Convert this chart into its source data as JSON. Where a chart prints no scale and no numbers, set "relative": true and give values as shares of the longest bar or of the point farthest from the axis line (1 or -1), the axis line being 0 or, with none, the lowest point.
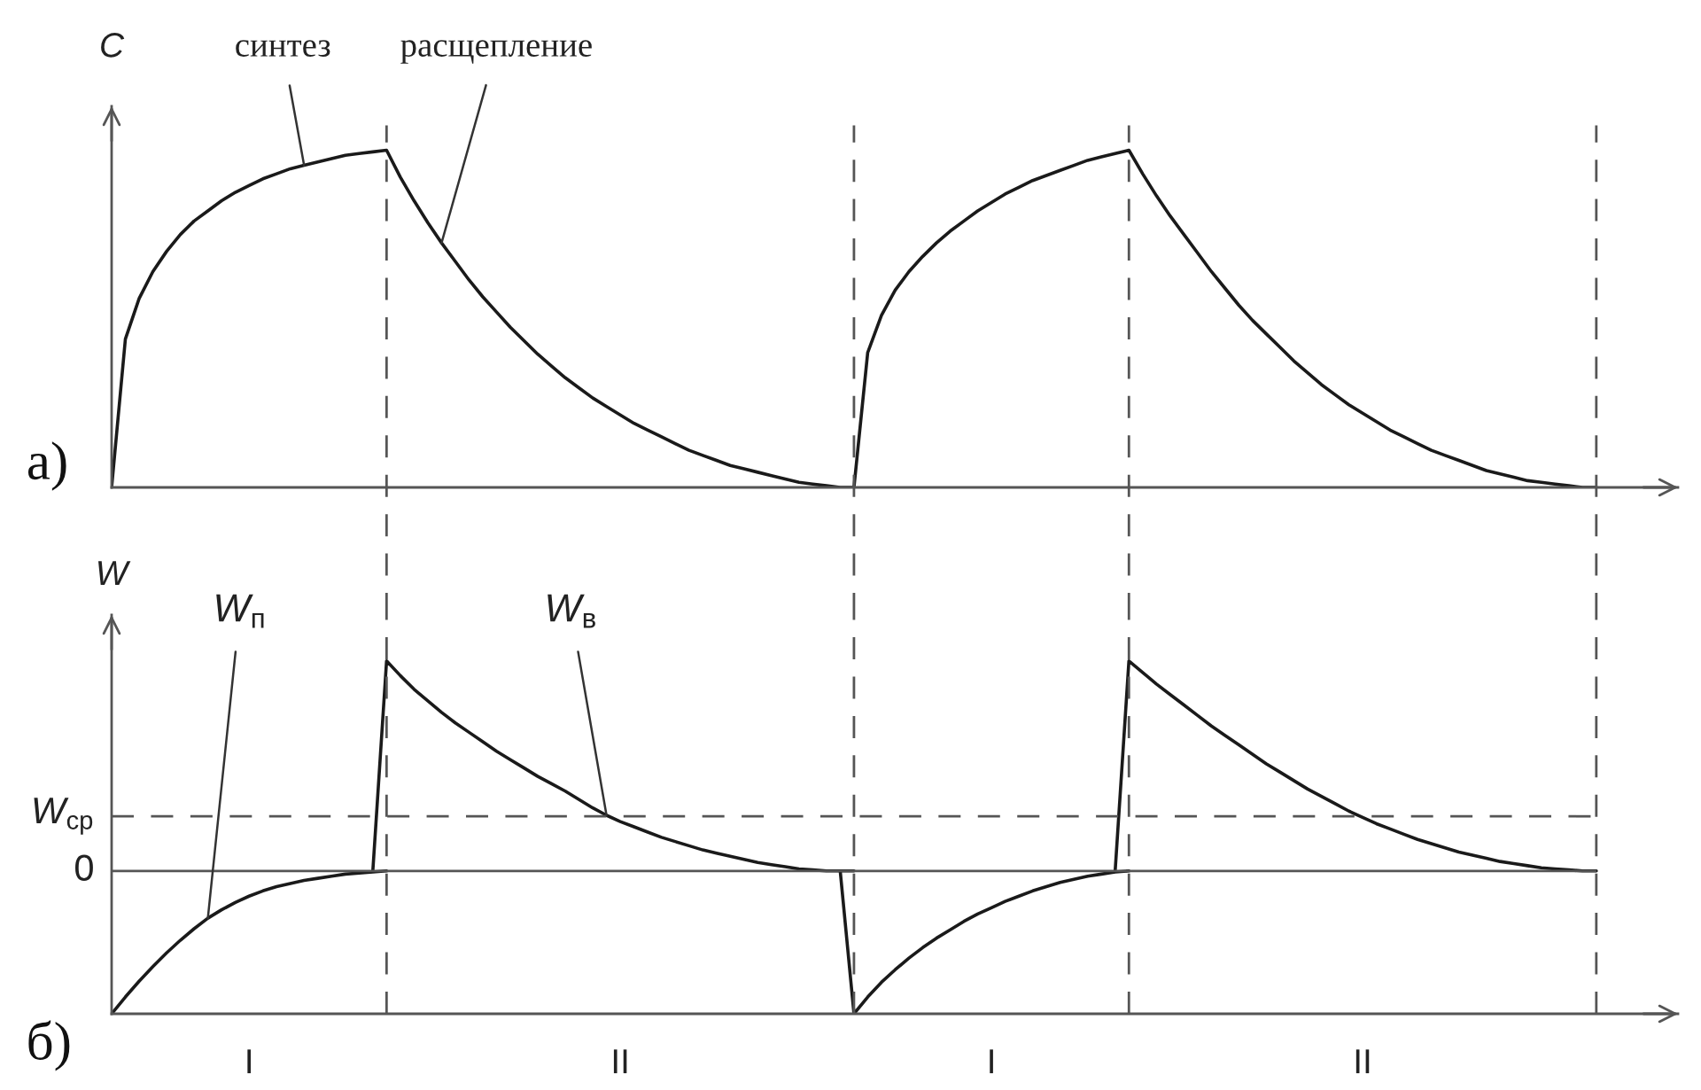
{
  "chart_data": [
    {
      "type": "line",
      "title": "а)",
      "ylabel": "C",
      "relative": true,
      "tick_labels": false,
      "grid": "x",
      "categories": [
        null,
        null,
        null,
        null,
        null,
        null,
        null,
        null,
        null,
        null,
        null,
        null,
        null,
        null,
        null,
        null,
        null,
        null,
        null,
        null,
        null,
        null,
        null,
        null,
        null,
        null,
        null,
        null,
        null,
        null,
        null,
        null,
        null,
        null,
        null,
        null,
        null,
        null,
        null,
        null,
        null,
        null,
        null,
        null,
        null,
        null,
        null,
        null,
        null,
        null,
        null,
        null,
        null,
        null,
        null,
        null,
        null,
        null,
        null,
        null,
        null,
        null,
        null,
        null,
        null,
        null,
        null,
        null,
        null,
        null,
        null,
        null,
        null,
        null,
        null,
        null,
        null,
        null,
        null,
        null,
        null,
        null,
        null,
        null,
        null,
        null,
        null,
        null,
        null,
        null,
        null,
        null,
        null,
        null,
        null,
        null,
        null,
        null,
        null,
        null,
        null,
        null,
        null,
        null,
        null,
        null,
        null,
        null,
        null
      ],
      "series": [
        {
          "color": "#1a1a1a",
          "values": [
            0,
            0.44,
            0.56,
            0.64,
            0.7,
            0.75,
            0.79,
            0.82,
            0.85,
            0.875,
            0.895,
            0.915,
            0.93,
            0.945,
            0.955,
            0.965,
            0.975,
            0.985,
            0.99,
            0.995,
            1.0,
            0.92,
            0.85,
            0.785,
            0.725,
            0.67,
            0.615,
            0.565,
            0.52,
            0.475,
            0.435,
            0.395,
            0.36,
            0.325,
            0.295,
            0.265,
            0.24,
            0.215,
            0.19,
            0.17,
            0.15,
            0.13,
            0.11,
            0.095,
            0.08,
            0.065,
            0.055,
            0.045,
            0.035,
            0.025,
            0.015,
            0.01,
            0.005,
            0,
            0,
            0.4,
            0.51,
            0.585,
            0.64,
            0.685,
            0.725,
            0.76,
            0.79,
            0.82,
            0.845,
            0.87,
            0.89,
            0.91,
            0.925,
            0.94,
            0.955,
            0.97,
            0.98,
            0.99,
            1.0,
            0.93,
            0.865,
            0.805,
            0.75,
            0.695,
            0.64,
            0.59,
            0.54,
            0.495,
            0.455,
            0.415,
            0.375,
            0.34,
            0.305,
            0.275,
            0.245,
            0.22,
            0.195,
            0.17,
            0.15,
            0.13,
            0.11,
            0.095,
            0.08,
            0.065,
            0.05,
            0.04,
            0.03,
            0.02,
            0.015,
            0.01,
            0.005,
            0,
            0
          ]
        }
      ],
      "annotations": [
        "синтез",
        "расщепление"
      ]
    },
    {
      "type": "line",
      "title": "б)",
      "ylabel": "W",
      "relative": true,
      "tick_labels": "x",
      "grid": "x",
      "categories": [
        null,
        null,
        null,
        null,
        null,
        null,
        null,
        null,
        null,
        null,
        "I",
        null,
        null,
        null,
        null,
        null,
        null,
        null,
        null,
        null,
        null,
        null,
        null,
        null,
        null,
        null,
        null,
        null,
        null,
        null,
        null,
        null,
        null,
        null,
        null,
        null,
        null,
        "II",
        null,
        null,
        null,
        null,
        null,
        null,
        null,
        null,
        null,
        null,
        null,
        null,
        null,
        null,
        null,
        null,
        null,
        null,
        null,
        null,
        null,
        null,
        null,
        null,
        null,
        null,
        "I",
        null,
        null,
        null,
        null,
        null,
        null,
        null,
        null,
        null,
        null,
        null,
        null,
        null,
        null,
        null,
        null,
        null,
        null,
        null,
        null,
        null,
        null,
        null,
        null,
        null,
        null,
        "II",
        null,
        null,
        null,
        null,
        null,
        null,
        null,
        null,
        null,
        null,
        null,
        null,
        null,
        null,
        null,
        null,
        null
      ],
      "series": [
        {
          "name": "W$_{п}$",
          "color": "#1a1a1a",
          "values": [
            -0.68,
            -0.6,
            -0.525,
            -0.455,
            -0.39,
            -0.33,
            -0.275,
            -0.225,
            -0.185,
            -0.15,
            -0.12,
            -0.095,
            -0.075,
            -0.06,
            -0.045,
            -0.035,
            -0.025,
            -0.015,
            -0.01,
            -0.005,
            0,
            null,
            null,
            null,
            null,
            null,
            null,
            null,
            null,
            null,
            null,
            null,
            null,
            null,
            null,
            null,
            null,
            null,
            null,
            null,
            null,
            null,
            null,
            null,
            null,
            null,
            null,
            null,
            null,
            null,
            null,
            null,
            null,
            0,
            -0.68,
            -0.6,
            -0.53,
            -0.47,
            -0.415,
            -0.365,
            -0.32,
            -0.28,
            -0.24,
            -0.205,
            -0.175,
            -0.145,
            -0.12,
            -0.095,
            -0.075,
            -0.055,
            -0.04,
            -0.025,
            -0.015,
            -0.005,
            0,
            null,
            null,
            null,
            null,
            null,
            null,
            null,
            null,
            null,
            null,
            null,
            null,
            null,
            null,
            null,
            null,
            null,
            null,
            null,
            null,
            null,
            null,
            null,
            null,
            null,
            null,
            null,
            null,
            null,
            null,
            null,
            null,
            null,
            null
          ]
        },
        {
          "name": "W$_{в}$",
          "color": "#1a1a1a",
          "values": [
            null,
            null,
            null,
            null,
            null,
            null,
            null,
            null,
            null,
            null,
            null,
            null,
            null,
            null,
            null,
            null,
            null,
            null,
            null,
            0,
            1.0,
            0.93,
            0.865,
            0.81,
            0.755,
            0.705,
            0.66,
            0.615,
            0.57,
            0.53,
            0.49,
            0.45,
            0.415,
            0.38,
            0.34,
            0.3,
            0.265,
            0.235,
            0.21,
            0.185,
            0.16,
            0.14,
            0.12,
            0.1,
            0.085,
            0.07,
            0.055,
            0.04,
            0.03,
            0.02,
            0.01,
            0.005,
            0,
            0,
            0,
            null,
            null,
            null,
            null,
            null,
            null,
            null,
            null,
            null,
            null,
            null,
            null,
            null,
            null,
            null,
            null,
            null,
            null,
            0,
            1.0,
            0.945,
            0.89,
            0.84,
            0.79,
            0.74,
            0.69,
            0.645,
            0.6,
            0.555,
            0.51,
            0.47,
            0.43,
            0.39,
            0.355,
            0.32,
            0.285,
            0.255,
            0.225,
            0.2,
            0.175,
            0.15,
            0.13,
            0.11,
            0.09,
            0.075,
            0.06,
            0.045,
            0.035,
            0.025,
            0.015,
            0.01,
            0.005,
            0,
            0
          ]
        }
      ],
      "ref_lines": [
        {
          "axis": "y",
          "value": 0,
          "label": "0",
          "line_style": "solid",
          "color": "#555555"
        },
        {
          "axis": "y",
          "value": 0.26,
          "label": "W$_{ср}$",
          "line_style": "dashed",
          "color": "#555555"
        }
      ]
    }
  ]
}
